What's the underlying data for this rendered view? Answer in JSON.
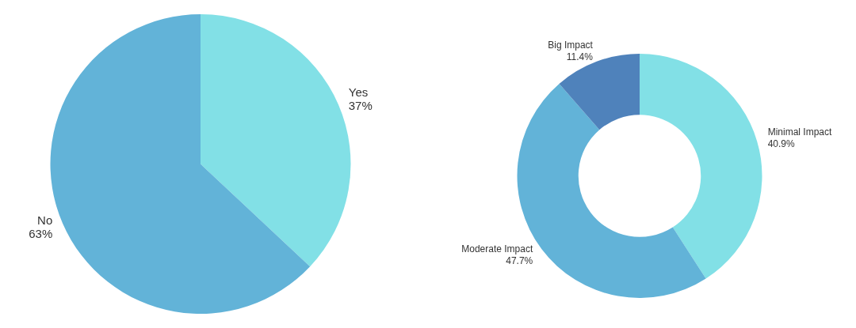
{
  "chart_data": [
    {
      "type": "pie",
      "categories": [
        "Yes",
        "No"
      ],
      "values": [
        37,
        63
      ],
      "colors": [
        "#82e0e6",
        "#62b3d8"
      ],
      "value_labels": [
        "37%",
        "63%"
      ]
    },
    {
      "type": "donut",
      "categories": [
        "Minimal Impact",
        "Moderate Impact",
        "Big Impact"
      ],
      "values": [
        40.9,
        47.7,
        11.4
      ],
      "colors": [
        "#82e0e6",
        "#62b3d8",
        "#4f82bb"
      ],
      "value_labels": [
        "40.9%",
        "47.7%",
        "11.4%"
      ]
    }
  ]
}
